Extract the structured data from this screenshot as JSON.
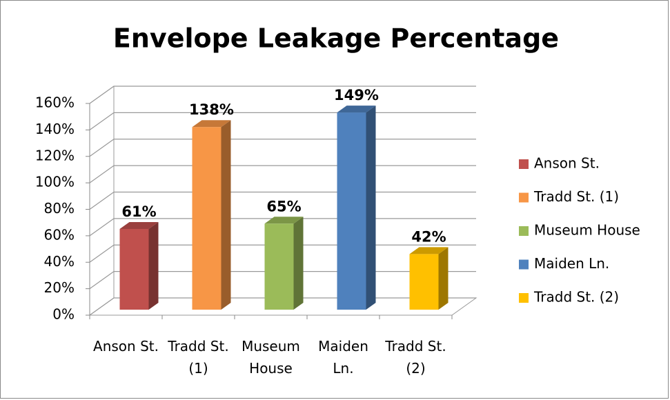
{
  "chart_data": {
    "type": "bar3d",
    "title": "Envelope Leakage Percentage",
    "categories": [
      "Anson St.",
      "Tradd St. (1)",
      "Museum House",
      "Maiden Ln.",
      "Tradd St. (2)"
    ],
    "values": [
      61,
      138,
      65,
      149,
      42
    ],
    "value_labels": [
      "61%",
      "138%",
      "65%",
      "149%",
      "42%"
    ],
    "colors": [
      "#c0504d",
      "#f79646",
      "#9bbb59",
      "#4f81bd",
      "#ffc000"
    ],
    "ylim": [
      0,
      160
    ],
    "yticks": [
      {
        "value": 0,
        "label": "0%"
      },
      {
        "value": 20,
        "label": "20%"
      },
      {
        "value": 40,
        "label": "40%"
      },
      {
        "value": 60,
        "label": "60%"
      },
      {
        "value": 80,
        "label": "80%"
      },
      {
        "value": 100,
        "label": "100%"
      },
      {
        "value": 120,
        "label": "120%"
      },
      {
        "value": 140,
        "label": "140%"
      },
      {
        "value": 160,
        "label": "160%"
      }
    ],
    "grid": true,
    "legend": "right"
  }
}
